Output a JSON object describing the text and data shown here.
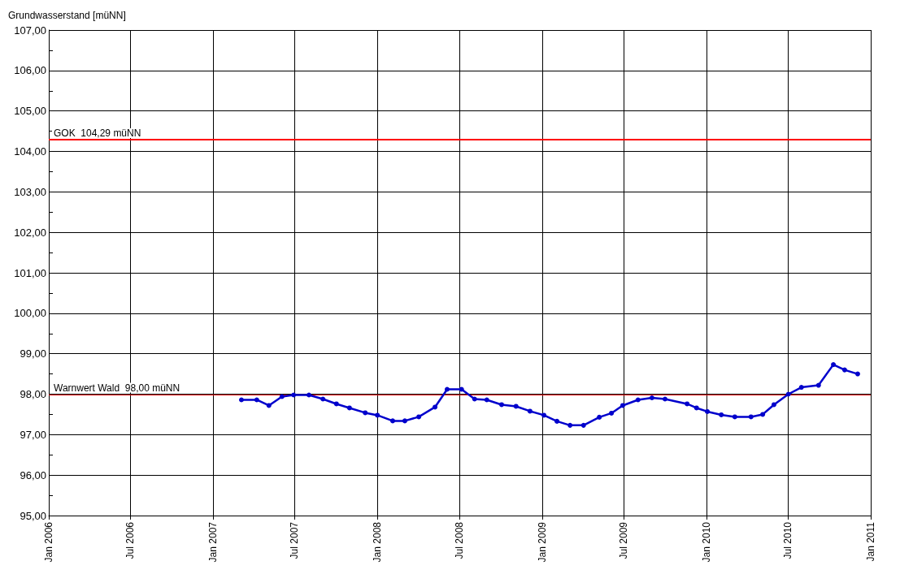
{
  "chart_data": {
    "type": "line",
    "ylabel": "Grundwasserstand [müNN]",
    "xlim": [
      "2006-01",
      "2011-01"
    ],
    "xticks": [
      {
        "value": "2006-01",
        "label": "Jan 2006"
      },
      {
        "value": "2006-07",
        "label": "Jul 2006"
      },
      {
        "value": "2007-01",
        "label": "Jan 2007"
      },
      {
        "value": "2007-07",
        "label": "Jul 2007"
      },
      {
        "value": "2008-01",
        "label": "Jan 2008"
      },
      {
        "value": "2008-07",
        "label": "Jul 2008"
      },
      {
        "value": "2009-01",
        "label": "Jan 2009"
      },
      {
        "value": "2009-07",
        "label": "Jul 2009"
      },
      {
        "value": "2010-01",
        "label": "Jan 2010"
      },
      {
        "value": "2010-07",
        "label": "Jul 2010"
      },
      {
        "value": "2011-01",
        "label": "Jan 2011"
      }
    ],
    "ylim": [
      95,
      107
    ],
    "yticks": [
      {
        "value": 95,
        "label": "95,00"
      },
      {
        "value": 95.5,
        "label": null
      },
      {
        "value": 96,
        "label": "96,00"
      },
      {
        "value": 96.5,
        "label": null
      },
      {
        "value": 97,
        "label": "97,00"
      },
      {
        "value": 97.5,
        "label": null
      },
      {
        "value": 98,
        "label": "98,00"
      },
      {
        "value": 98.5,
        "label": null
      },
      {
        "value": 99,
        "label": "99,00"
      },
      {
        "value": 99.5,
        "label": null
      },
      {
        "value": 100,
        "label": "100,00"
      },
      {
        "value": 100.5,
        "label": null
      },
      {
        "value": 101,
        "label": "101,00"
      },
      {
        "value": 101.5,
        "label": null
      },
      {
        "value": 102,
        "label": "102,00"
      },
      {
        "value": 102.5,
        "label": null
      },
      {
        "value": 103,
        "label": "103,00"
      },
      {
        "value": 103.5,
        "label": null
      },
      {
        "value": 104,
        "label": "104,00"
      },
      {
        "value": 104.5,
        "label": null
      },
      {
        "value": 105,
        "label": "105,00"
      },
      {
        "value": 105.5,
        "label": null
      },
      {
        "value": 106,
        "label": "106,00"
      },
      {
        "value": 106.5,
        "label": null
      },
      {
        "value": 107,
        "label": "107,00"
      }
    ],
    "grid": true,
    "marker": "circle",
    "line_style": "solid",
    "ref_lines": [
      {
        "axis": "y",
        "value": 104.29,
        "label": "GOK  104,29 müNN",
        "color": "#ff0000"
      },
      {
        "axis": "y",
        "value": 98,
        "label": "Warnwert Wald  98,00 müNN",
        "color": "#ff0000"
      }
    ],
    "x": [
      "2007-03-05",
      "2007-04-08",
      "2007-05-05",
      "2007-06-03",
      "2007-06-29",
      "2007-08-02",
      "2007-09-02",
      "2007-10-02",
      "2007-10-31",
      "2007-12-05",
      "2008-01-01",
      "2008-02-04",
      "2008-03-02",
      "2008-04-02",
      "2008-05-08",
      "2008-06-04",
      "2008-07-06",
      "2008-08-04",
      "2008-08-31",
      "2008-10-03",
      "2008-11-04",
      "2008-12-05",
      "2009-01-05",
      "2009-02-03",
      "2009-03-04",
      "2009-04-03",
      "2009-05-08",
      "2009-06-04",
      "2009-06-29",
      "2009-08-02",
      "2009-09-02",
      "2009-10-01",
      "2009-11-19",
      "2009-12-10",
      "2010-01-03",
      "2010-02-03",
      "2010-03-05",
      "2010-04-10",
      "2010-05-06",
      "2010-05-31",
      "2010-07-02",
      "2010-07-31",
      "2010-09-07",
      "2010-10-10",
      "2010-11-04",
      "2010-12-03"
    ],
    "series": [
      {
        "color": "#0000cc",
        "values": [
          97.86,
          97.86,
          97.72,
          97.94,
          97.98,
          97.98,
          97.88,
          97.76,
          97.66,
          97.54,
          97.48,
          97.34,
          97.34,
          97.44,
          97.68,
          98.12,
          98.12,
          97.88,
          97.86,
          97.74,
          97.7,
          97.58,
          97.48,
          97.33,
          97.23,
          97.23,
          97.43,
          97.53,
          97.72,
          97.86,
          97.91,
          97.88,
          97.76,
          97.66,
          97.57,
          97.49,
          97.44,
          97.44,
          97.5,
          97.74,
          98.0,
          98.17,
          98.22,
          98.73,
          98.6,
          98.5
        ]
      }
    ]
  }
}
